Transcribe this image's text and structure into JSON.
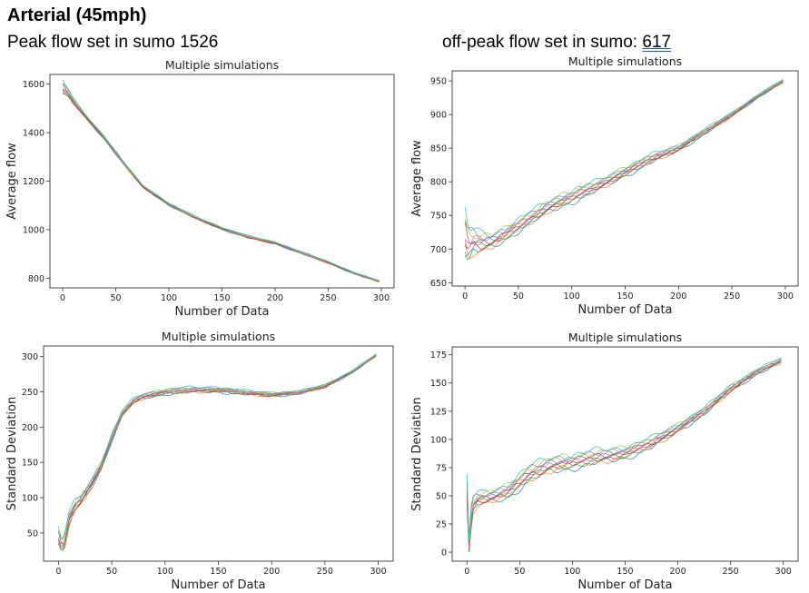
{
  "slide": {
    "title": "Arterial (45mph)",
    "peak_caption": "Peak flow set in sumo 1526",
    "offpeak_caption_prefix": "off-peak flow set in sumo: ",
    "offpeak_value": "617"
  },
  "colors": [
    "#1f77b4",
    "#ff7f0e",
    "#2ca02c",
    "#d62728",
    "#9467bd",
    "#8c564b",
    "#e377c2",
    "#7f7f7f",
    "#bcbd22",
    "#17becf"
  ],
  "chart_data": [
    {
      "type": "line",
      "title": "Multiple simulations",
      "xlabel": "Number of Data",
      "ylabel": "Average flow",
      "xlim": [
        -12,
        312
      ],
      "ylim": [
        760,
        1640
      ],
      "xticks": [
        0,
        50,
        100,
        150,
        200,
        250,
        300
      ],
      "yticks": [
        800,
        1000,
        1200,
        1400,
        1600
      ],
      "grid": false,
      "series_count": 10,
      "x": [
        0,
        5,
        10,
        20,
        40,
        60,
        75,
        100,
        125,
        150,
        175,
        200,
        225,
        250,
        275,
        298
      ],
      "mean": [
        1585,
        1565,
        1530,
        1475,
        1375,
        1260,
        1180,
        1105,
        1050,
        1005,
        970,
        945,
        905,
        865,
        820,
        787
      ],
      "spread": [
        35,
        22,
        15,
        10,
        8,
        7,
        7,
        6,
        6,
        6,
        6,
        6,
        5,
        5,
        4,
        4
      ]
    },
    {
      "type": "line",
      "title": "Multiple simulations",
      "xlabel": "Number of Data",
      "ylabel": "Average flow",
      "xlim": [
        -12,
        312
      ],
      "ylim": [
        645,
        965
      ],
      "xticks": [
        0,
        50,
        100,
        150,
        200,
        250,
        300
      ],
      "yticks": [
        650,
        700,
        750,
        800,
        850,
        900,
        950
      ],
      "grid": false,
      "series_count": 10,
      "x": [
        0,
        3,
        8,
        15,
        25,
        40,
        60,
        80,
        100,
        125,
        150,
        175,
        200,
        225,
        250,
        275,
        298
      ],
      "mean": [
        720,
        705,
        712,
        710,
        712,
        725,
        745,
        765,
        778,
        795,
        815,
        835,
        850,
        875,
        900,
        928,
        950
      ],
      "spread": [
        45,
        35,
        25,
        18,
        14,
        12,
        12,
        12,
        12,
        10,
        9,
        8,
        6,
        5,
        4,
        3,
        3
      ]
    },
    {
      "type": "line",
      "title": "Multiple simulations",
      "xlabel": "Number of Data",
      "ylabel": "Standard Deviation",
      "xlim": [
        -14,
        314
      ],
      "ylim": [
        10,
        315
      ],
      "xticks": [
        0,
        50,
        100,
        150,
        200,
        250,
        300
      ],
      "yticks": [
        50,
        100,
        150,
        200,
        250,
        300
      ],
      "grid": false,
      "series_count": 10,
      "x": [
        0,
        3,
        6,
        10,
        15,
        20,
        30,
        40,
        50,
        60,
        70,
        80,
        100,
        125,
        150,
        175,
        200,
        225,
        250,
        275,
        298
      ],
      "mean": [
        45,
        30,
        40,
        70,
        88,
        95,
        118,
        145,
        185,
        220,
        237,
        244,
        250,
        253,
        253,
        249,
        246,
        249,
        258,
        278,
        302
      ],
      "spread": [
        15,
        12,
        14,
        12,
        10,
        9,
        8,
        7,
        6,
        5,
        5,
        5,
        5,
        5,
        5,
        4,
        4,
        3,
        3,
        2,
        2
      ]
    },
    {
      "type": "line",
      "title": "Multiple simulations",
      "xlabel": "Number of Data",
      "ylabel": "Standard Deviation",
      "xlim": [
        -14,
        314
      ],
      "ylim": [
        -8,
        182
      ],
      "xticks": [
        0,
        50,
        100,
        150,
        200,
        250,
        300
      ],
      "yticks": [
        0,
        25,
        50,
        75,
        100,
        125,
        150,
        175
      ],
      "grid": false,
      "series_count": 10,
      "x": [
        0,
        2,
        4,
        6,
        10,
        15,
        25,
        40,
        60,
        80,
        100,
        125,
        150,
        175,
        200,
        225,
        250,
        275,
        298
      ],
      "mean": [
        55,
        5,
        30,
        42,
        47,
        48,
        50,
        55,
        70,
        78,
        80,
        85,
        88,
        97,
        110,
        125,
        145,
        160,
        170
      ],
      "spread": [
        15,
        8,
        14,
        10,
        8,
        7,
        7,
        8,
        9,
        9,
        8,
        8,
        7,
        6,
        5,
        4,
        4,
        3,
        3
      ]
    }
  ]
}
